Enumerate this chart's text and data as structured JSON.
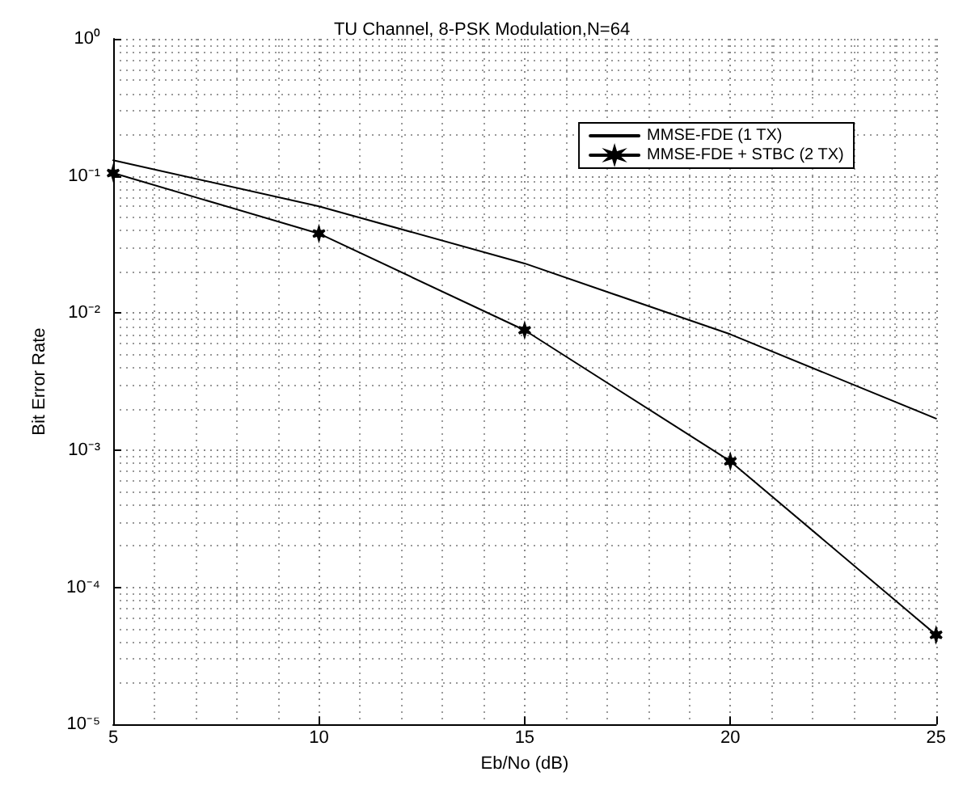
{
  "chart_data": {
    "type": "line",
    "title": "TU Channel, 8-PSK Modulation,N=64",
    "xlabel": "Eb/No (dB)",
    "ylabel": "Bit Error Rate",
    "x": [
      5,
      10,
      15,
      20,
      25
    ],
    "series": [
      {
        "name": "MMSE-FDE (1 TX)",
        "color": "#000000",
        "marker": "none",
        "values": [
          0.13,
          0.06,
          0.023,
          0.007,
          0.0017
        ]
      },
      {
        "name": "MMSE-FDE + STBC (2 TX)",
        "color": "#000000",
        "marker": "cross",
        "values": [
          0.105,
          0.038,
          0.0075,
          0.00083,
          4.5e-05
        ]
      }
    ],
    "log": "y",
    "xlim": [
      5,
      25
    ],
    "xticks": [
      5,
      10,
      15,
      20,
      25
    ],
    "ylim": [
      1e-05,
      1
    ],
    "yticks": [
      {
        "value": 1,
        "label": "10⁰"
      },
      {
        "value": 0.1,
        "label": "10⁻¹"
      },
      {
        "value": 0.01,
        "label": "10⁻²"
      },
      {
        "value": 0.001,
        "label": "10⁻³"
      },
      {
        "value": 0.0001,
        "label": "10⁻⁴"
      },
      {
        "value": 1e-05,
        "label": "10⁻⁵"
      }
    ],
    "grid": true,
    "legend": "top right",
    "line_style": "solid"
  }
}
